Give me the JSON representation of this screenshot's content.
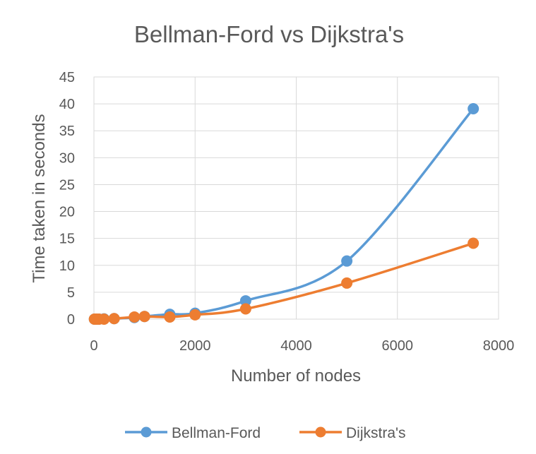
{
  "chart_data": {
    "type": "scatter",
    "title": "Bellman-Ford vs Dijkstra's",
    "xlabel": "Number of nodes",
    "ylabel": "Time taken in seconds",
    "xlim": [
      0,
      8000
    ],
    "ylim": [
      0,
      45
    ],
    "x_ticks": [
      0,
      2000,
      4000,
      6000,
      8000
    ],
    "y_ticks": [
      0,
      5,
      10,
      15,
      20,
      25,
      30,
      35,
      40,
      45
    ],
    "x_tick_labels": [
      "0",
      "2000",
      "4000",
      "6000",
      "8000"
    ],
    "y_tick_labels": [
      "0",
      "5",
      "10",
      "15",
      "20",
      "25",
      "30",
      "35",
      "40",
      "45"
    ],
    "grid": true,
    "smooth_lines": true,
    "legend_position": "bottom",
    "series": [
      {
        "name": "Bellman-Ford",
        "color": "#5B9BD5",
        "x": [
          10,
          50,
          100,
          200,
          400,
          800,
          1000,
          1500,
          2000,
          3000,
          5000,
          7500
        ],
        "y": [
          0.0,
          0.0,
          0.0,
          0.05,
          0.1,
          0.3,
          0.5,
          0.9,
          1.1,
          3.4,
          10.8,
          39.1
        ]
      },
      {
        "name": "Dijkstra's",
        "color": "#ED7D31",
        "x": [
          10,
          50,
          100,
          200,
          400,
          800,
          1000,
          1500,
          2000,
          3000,
          5000,
          7500
        ],
        "y": [
          0.0,
          0.0,
          0.0,
          0.0,
          0.1,
          0.4,
          0.5,
          0.4,
          0.8,
          1.9,
          6.7,
          14.1
        ]
      }
    ]
  }
}
